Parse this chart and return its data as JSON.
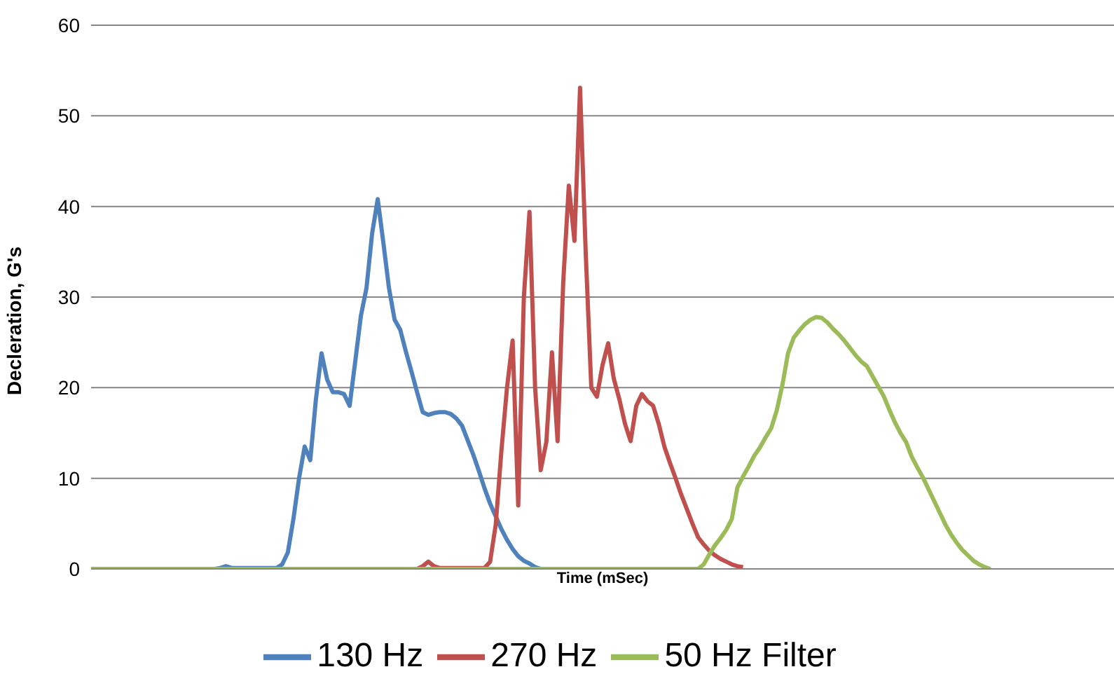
{
  "chart_data": {
    "type": "line",
    "xlabel": "Time (mSec)",
    "ylabel": "Decleration, G's",
    "ylim": [
      0,
      60
    ],
    "yticks": [
      0,
      10,
      20,
      30,
      40,
      50,
      60
    ],
    "grid": "y",
    "legend": "bottom",
    "tick_labels": "y",
    "marker": "none",
    "line_style": "solid",
    "categories": [
      null,
      null,
      null,
      null,
      null,
      null,
      null,
      null,
      null,
      null,
      null,
      null,
      null,
      null,
      null,
      null,
      null,
      null,
      null,
      null,
      null,
      null,
      null,
      null,
      null,
      null,
      null,
      null,
      null,
      null,
      null,
      null,
      null,
      null,
      null,
      null,
      null,
      null,
      null,
      null,
      null,
      null,
      null,
      null,
      null,
      null,
      null,
      null,
      null,
      null,
      null,
      null,
      null,
      null,
      null,
      null,
      null,
      null,
      null,
      null,
      null,
      null,
      null,
      null,
      null,
      null,
      null,
      null,
      null,
      null,
      null,
      null,
      null,
      null,
      null,
      null,
      null,
      null,
      null,
      null,
      null,
      null,
      null,
      null,
      null,
      null,
      null,
      null,
      null,
      null,
      null,
      null,
      null,
      null,
      null,
      null,
      null,
      null,
      null,
      null,
      null,
      null,
      null,
      null,
      null,
      null,
      null,
      null,
      null,
      null,
      null,
      null,
      null,
      null,
      null,
      null,
      null,
      null,
      null,
      null,
      null,
      null,
      null,
      null,
      null,
      null,
      null,
      null,
      null,
      null,
      null,
      null,
      null,
      null,
      null,
      null,
      null,
      null,
      null,
      null,
      null,
      null,
      null,
      null,
      null,
      null,
      null,
      null,
      null,
      null,
      null,
      null,
      null,
      null,
      null,
      null,
      null,
      null,
      null,
      null,
      null,
      null,
      null,
      null,
      null,
      null,
      null,
      null,
      null,
      null,
      null,
      null,
      null,
      null,
      null,
      null,
      null,
      null,
      null,
      null,
      null,
      null,
      null
    ],
    "series": [
      {
        "name": "130 Hz",
        "color": "#4f81bd",
        "values": [
          null,
          null,
          null,
          null,
          null,
          null,
          null,
          null,
          null,
          null,
          null,
          null,
          null,
          null,
          null,
          null,
          null,
          null,
          null,
          null,
          0,
          0,
          0,
          0.1,
          0.3,
          0.1,
          0.1,
          0.1,
          0.1,
          0.1,
          0.1,
          0.1,
          0.1,
          0.1,
          0.5,
          1.8,
          5.5,
          10,
          13.5,
          12,
          18.7,
          23.8,
          20.9,
          19.5,
          19.5,
          19.3,
          18,
          22.9,
          27.9,
          31,
          37,
          40.8,
          36,
          31,
          27.5,
          26.4,
          24,
          21.8,
          19.5,
          17.3,
          17,
          17.2,
          17.3,
          17.3,
          17.1,
          16.6,
          15.8,
          14.2,
          12.6,
          10.8,
          8.9,
          7.2,
          5.8,
          4.4,
          3.2,
          2.2,
          1.4,
          0.9,
          0.6,
          0.2,
          0,
          null,
          null,
          null,
          null,
          null,
          null,
          null,
          null,
          null,
          null,
          null,
          null,
          null,
          null,
          null,
          null,
          null,
          null,
          null,
          null,
          null,
          null,
          null,
          null,
          null,
          null,
          null,
          null,
          null,
          null,
          null,
          null,
          null,
          null,
          null,
          null,
          null,
          null,
          null,
          null,
          null,
          null,
          null,
          null,
          null,
          null,
          null,
          null,
          null,
          null,
          null,
          null,
          null,
          null,
          null,
          null,
          null,
          null,
          null,
          null,
          null,
          null,
          null,
          null,
          null,
          null,
          null,
          null,
          null,
          null,
          null,
          null,
          null,
          null,
          null,
          null,
          null,
          null,
          null,
          null,
          null,
          null,
          null,
          null,
          null,
          null,
          null,
          null,
          null,
          null,
          null,
          null,
          null,
          null,
          null,
          null,
          null,
          null,
          null,
          null,
          null,
          null
        ]
      },
      {
        "name": "270 Hz",
        "color": "#c0504d",
        "values": [
          null,
          null,
          null,
          null,
          null,
          null,
          null,
          null,
          null,
          null,
          null,
          null,
          null,
          null,
          null,
          null,
          null,
          null,
          null,
          null,
          null,
          null,
          null,
          null,
          null,
          null,
          null,
          null,
          null,
          null,
          null,
          null,
          null,
          null,
          null,
          null,
          null,
          null,
          null,
          null,
          null,
          null,
          null,
          null,
          null,
          null,
          null,
          null,
          null,
          null,
          null,
          null,
          null,
          null,
          null,
          null,
          0,
          0,
          0,
          0.3,
          0.8,
          0.3,
          0.1,
          0.1,
          0.1,
          0.1,
          0.1,
          0.1,
          0.1,
          0.1,
          0.1,
          0.8,
          4.9,
          13,
          20,
          25.2,
          7,
          30,
          39.4,
          20,
          10.9,
          14,
          23.9,
          14.1,
          31.6,
          42.3,
          36.2,
          53.1,
          35,
          20,
          19,
          22.5,
          24.9,
          21,
          18.7,
          16,
          14.1,
          18,
          19.3,
          18.5,
          18,
          16,
          13.5,
          11.7,
          10,
          8.2,
          6.6,
          5,
          3.5,
          2.7,
          2,
          1.5,
          1.1,
          0.8,
          0.5,
          0.3,
          0.2,
          null,
          null,
          null,
          null,
          null,
          null,
          null,
          null,
          null,
          null,
          null,
          null,
          null,
          null,
          null,
          null,
          null,
          null,
          null,
          null,
          null,
          null,
          null,
          null,
          null,
          null,
          null,
          null,
          null,
          null,
          null,
          null,
          null,
          null,
          null,
          null,
          null,
          null,
          null,
          null,
          null,
          null,
          null,
          null,
          null,
          null,
          null,
          null,
          null,
          null,
          null,
          null,
          null,
          null,
          null,
          null,
          null,
          null,
          null,
          null,
          null,
          null,
          null,
          null,
          null,
          null
        ]
      },
      {
        "name": "50 Hz Filter",
        "color": "#9bbb59",
        "values": [
          0,
          0,
          0,
          0,
          0,
          0,
          0,
          0,
          0,
          0,
          0,
          0,
          0,
          0,
          0,
          0,
          0,
          0,
          0,
          0,
          0,
          0,
          0,
          0,
          0,
          0,
          0,
          0,
          0,
          0,
          0,
          0,
          0,
          0,
          0,
          0,
          0,
          0,
          0,
          0,
          0,
          0,
          0,
          0,
          0,
          0,
          0,
          0,
          0,
          0,
          0,
          0,
          0,
          0,
          0,
          0,
          0,
          0,
          0,
          0,
          0,
          0,
          0,
          0,
          0,
          0,
          0,
          0,
          0,
          0,
          0,
          0,
          0,
          0,
          0,
          0,
          0,
          0,
          0,
          0,
          0,
          0,
          0,
          0,
          0,
          0,
          0,
          0,
          0,
          0,
          0,
          0,
          0,
          0,
          0,
          0,
          0,
          0,
          0,
          0,
          0,
          0,
          0,
          0,
          0,
          0,
          0,
          0,
          0,
          0.5,
          1.6,
          2.6,
          3.4,
          4.3,
          5.5,
          9,
          10.2,
          11.3,
          12.5,
          13.4,
          14.5,
          15.5,
          17.5,
          20.3,
          23.8,
          25.5,
          26.3,
          27,
          27.5,
          27.8,
          27.7,
          27.2,
          26.5,
          25.9,
          25.2,
          24.4,
          23.6,
          22.9,
          22.4,
          21.3,
          20.2,
          19.1,
          17.6,
          16.2,
          15,
          14,
          12.4,
          11.2,
          10.1,
          8.8,
          7.5,
          6.2,
          4.9,
          3.8,
          2.9,
          2.1,
          1.5,
          0.9,
          0.5,
          0.2,
          0,
          null,
          null,
          null,
          null,
          null,
          null,
          null,
          null,
          null,
          null,
          null,
          null,
          null,
          null,
          null,
          null,
          null,
          null,
          null,
          null,
          null,
          null
        ]
      }
    ]
  }
}
